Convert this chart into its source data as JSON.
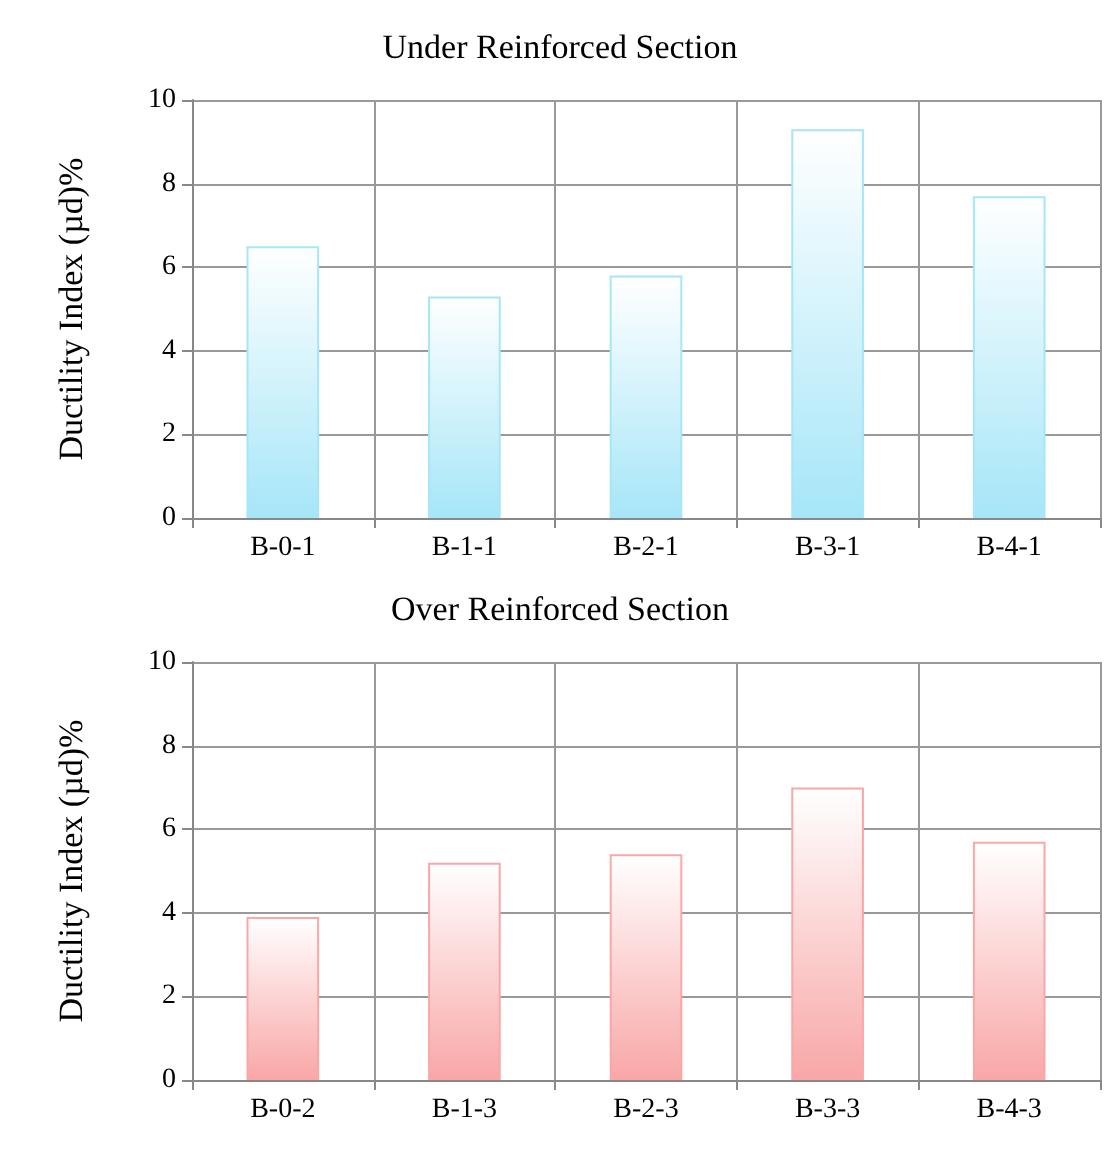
{
  "chart_data": [
    {
      "type": "bar",
      "title": "Under Reinforced Section",
      "ylabel": "Ductility Index (µd)%",
      "categories": [
        "B-0-1",
        "B-1-1",
        "B-2-1",
        "B-3-1",
        "B-4-1"
      ],
      "values": [
        6.5,
        5.3,
        5.8,
        9.3,
        7.7
      ],
      "color": "#a6e6f8",
      "ylim": [
        0,
        10
      ],
      "yticks": [
        0,
        2,
        4,
        6,
        8,
        10
      ],
      "grid": true
    },
    {
      "type": "bar",
      "title": "Over Reinforced Section",
      "ylabel": "Ductility Index (µd)%",
      "categories": [
        "B-0-2",
        "B-1-3",
        "B-2-3",
        "B-3-3",
        "B-4-3"
      ],
      "values": [
        3.9,
        5.2,
        5.4,
        7.0,
        5.7
      ],
      "color": "#f9a7a7",
      "ylim": [
        0,
        10
      ],
      "yticks": [
        0,
        2,
        4,
        6,
        8,
        10
      ],
      "grid": true
    }
  ]
}
